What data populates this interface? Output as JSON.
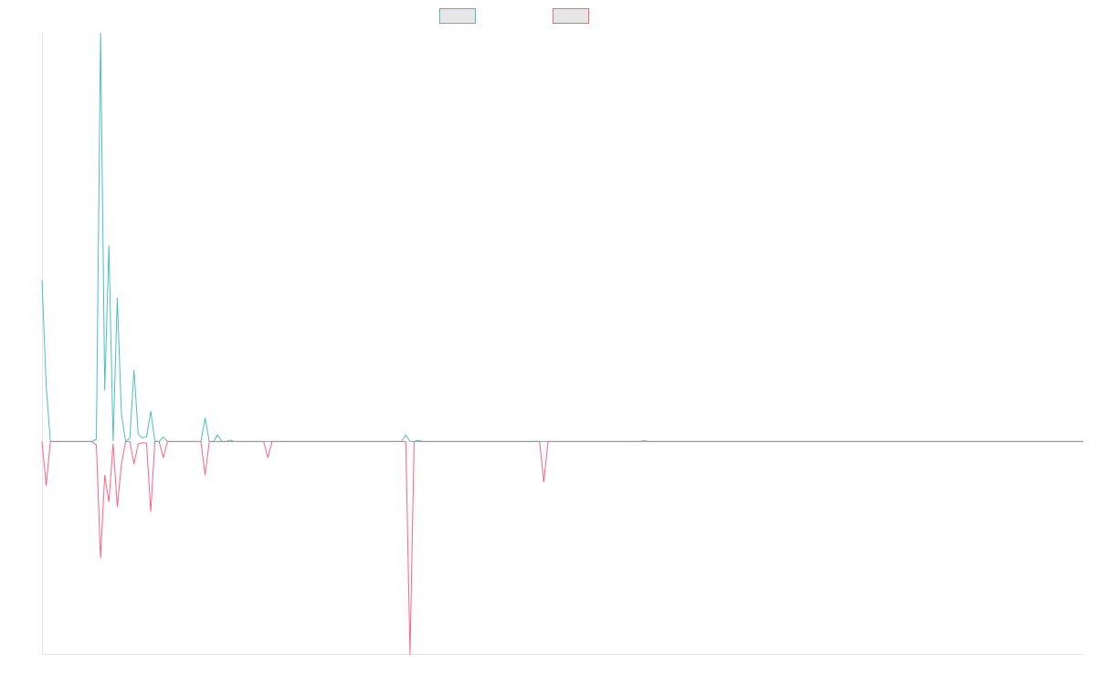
{
  "chart_data": {
    "type": "line",
    "title": "",
    "xlabel": "",
    "ylabel": "",
    "grid": false,
    "legend_position": "top-center",
    "y_range": [
      -0.52,
      1.0
    ],
    "series": [
      {
        "name": "",
        "color": "#4bc0c0",
        "fill_color": "#e6e6e6",
        "values": [
          0.395,
          0.135,
          0.0,
          0.0,
          0.0,
          0.0,
          0.0,
          0.0,
          0.0,
          0.0,
          0.0,
          0.0,
          0.0,
          0.006,
          1.0,
          0.125,
          0.48,
          0.0,
          0.352,
          0.065,
          0.0,
          0.008,
          0.175,
          0.018,
          0.009,
          0.011,
          0.074,
          0.0,
          0.0,
          0.011,
          0.0,
          0.0,
          0.0,
          0.0,
          0.0,
          0.0,
          0.0,
          0.0,
          0.0,
          0.058,
          0.0,
          0.0,
          0.0,
          0.0,
          0.0,
          0.0,
          0.0,
          0.0,
          0.0,
          0.0,
          0.0,
          0.0,
          0.0,
          0.0,
          0.0,
          0.0,
          0.0,
          0.0,
          0.0,
          0.0,
          0.0,
          0.0,
          0.0,
          0.0,
          0.0,
          0.0,
          0.0,
          0.0,
          0.0,
          0.0,
          0.0,
          0.0,
          0.0,
          0.0,
          0.0,
          0.0,
          0.0,
          0.0,
          0.0,
          0.0,
          0.0,
          0.0,
          0.0,
          0.0,
          0.0,
          0.0,
          0.0,
          0.0,
          0.0,
          0.0,
          0.0,
          0.0,
          0.0,
          0.0,
          0.0,
          0.0,
          0.0,
          0.0,
          0.0,
          0.0,
          0.0,
          0.0,
          0.0,
          0.0,
          0.0,
          0.0,
          0.0,
          0.0,
          0.0,
          0.0,
          0.0,
          0.0,
          0.0,
          0.0,
          0.0,
          0.0,
          0.0,
          0.0,
          0.0,
          0.0,
          0.0,
          0.0,
          0.0,
          0.0,
          0.0,
          0.0,
          0.0,
          0.0,
          0.0,
          0.0,
          0.0,
          0.0,
          0.0,
          0.0,
          0.0,
          0.0,
          0.0,
          0.0,
          0.0,
          0.0,
          0.0,
          0.0,
          0.0,
          0.0,
          0.0,
          0.0,
          0.0,
          0.0,
          0.0,
          0.0,
          0.0,
          0.0,
          0.0,
          0.0,
          0.0,
          0.0,
          0.0,
          0.0,
          0.0,
          0.0,
          0.0,
          0.0,
          0.0,
          0.0,
          0.0,
          0.0,
          0.0,
          0.0,
          0.0,
          0.0,
          0.0,
          0.0,
          0.0,
          0.0,
          0.0,
          0.0,
          0.0,
          0.0,
          0.0,
          0.0,
          0.0,
          0.0,
          0.0,
          0.0,
          0.0,
          0.0,
          0.0,
          0.0,
          0.0,
          0.0,
          0.0,
          0.0,
          0.0,
          0.0,
          0.0,
          0.0,
          0.0,
          0.0,
          0.0,
          0.0,
          0.0,
          0.0,
          0.0,
          0.0,
          0.0,
          0.0,
          0.0,
          0.0,
          0.0,
          0.0,
          0.0,
          0.0,
          0.0,
          0.0,
          0.0,
          0.0,
          0.0,
          0.0,
          0.0,
          0.0,
          0.0,
          0.0,
          0.0,
          0.0,
          0.0,
          0.0,
          0.0,
          0.0,
          0.0,
          0.0,
          0.0,
          0.0,
          0.0,
          0.0,
          0.0,
          0.0,
          0.0,
          0.0,
          0.0,
          0.0,
          0.0,
          0.0,
          0.0,
          0.0,
          0.0,
          0.0,
          0.0,
          0.0,
          0.0,
          0.0
        ],
        "spikes": [
          {
            "index": 42,
            "value": 0.016
          },
          {
            "index": 45,
            "value": 0.003
          },
          {
            "index": 87,
            "value": 0.016
          },
          {
            "index": 90,
            "value": 0.003
          },
          {
            "index": 144,
            "value": 0.002
          }
        ]
      },
      {
        "name": "",
        "color": "#ff6384",
        "fill_color": "#e6e6e6",
        "values": [
          0.0,
          -0.108,
          0.0,
          0.0,
          0.0,
          0.0,
          0.0,
          0.0,
          0.0,
          0.0,
          0.0,
          0.0,
          0.0,
          -0.009,
          -0.286,
          -0.082,
          -0.148,
          -0.005,
          -0.16,
          -0.055,
          0.0,
          0.0,
          -0.055,
          -0.006,
          -0.003,
          -0.004,
          -0.172,
          0.0,
          0.0,
          -0.04,
          0.0,
          0.0,
          0.0,
          0.0,
          0.0,
          0.0,
          0.0,
          0.0,
          0.0,
          -0.083,
          0.0,
          0.0,
          0.0,
          0.0,
          0.0,
          0.0,
          0.0,
          0.0,
          0.0,
          0.0,
          0.0,
          0.0,
          0.0,
          0.0,
          0.0,
          0.0,
          0.0,
          0.0,
          0.0,
          0.0,
          0.0,
          0.0,
          0.0,
          0.0,
          0.0,
          0.0,
          0.0,
          0.0,
          0.0,
          0.0,
          0.0,
          0.0,
          0.0,
          0.0,
          0.0,
          0.0,
          0.0,
          0.0,
          0.0,
          0.0,
          0.0,
          0.0,
          0.0,
          0.0,
          0.0,
          0.0,
          0.0,
          0.0,
          0.0,
          0.0,
          0.0,
          0.0,
          0.0,
          0.0,
          0.0,
          0.0,
          0.0,
          0.0,
          0.0,
          0.0,
          0.0,
          0.0,
          0.0,
          0.0,
          0.0,
          0.0,
          0.0,
          0.0,
          0.0,
          0.0,
          0.0,
          0.0,
          0.0,
          0.0,
          0.0,
          0.0,
          0.0,
          0.0,
          0.0,
          0.0,
          0.0,
          0.0,
          0.0,
          0.0,
          0.0,
          0.0,
          0.0,
          0.0,
          0.0,
          0.0,
          0.0,
          0.0,
          0.0,
          0.0,
          0.0,
          0.0,
          0.0,
          0.0,
          0.0,
          0.0,
          0.0,
          0.0,
          0.0,
          0.0,
          0.0,
          0.0,
          0.0,
          0.0,
          0.0,
          0.0,
          0.0,
          0.0,
          0.0,
          0.0,
          0.0,
          0.0,
          0.0,
          0.0,
          0.0,
          0.0,
          0.0,
          0.0,
          0.0,
          0.0,
          0.0,
          0.0,
          0.0,
          0.0,
          0.0,
          0.0,
          0.0,
          0.0,
          0.0,
          0.0,
          0.0,
          0.0,
          0.0,
          0.0,
          0.0,
          0.0,
          0.0,
          0.0,
          0.0,
          0.0,
          0.0,
          0.0,
          0.0,
          0.0,
          0.0,
          0.0,
          0.0,
          0.0,
          0.0,
          0.0,
          0.0,
          0.0,
          0.0,
          0.0,
          0.0,
          0.0,
          0.0,
          0.0,
          0.0,
          0.0,
          0.0,
          0.0,
          0.0,
          0.0,
          0.0,
          0.0,
          0.0,
          0.0,
          0.0,
          0.0,
          0.0,
          0.0,
          0.0,
          0.0,
          0.0,
          0.0,
          0.0,
          0.0,
          0.0,
          0.0,
          0.0,
          0.0,
          0.0,
          0.0,
          0.0,
          0.0,
          0.0,
          0.0,
          0.0,
          0.0,
          0.0,
          0.0,
          0.0,
          0.0,
          0.0,
          0.0,
          0.0,
          0.0,
          0.0,
          0.0,
          0.0,
          0.0,
          0.0,
          0.0,
          0.0,
          0.0
        ],
        "spikes": [
          {
            "index": 54,
            "value": -0.04
          },
          {
            "index": 88,
            "value": -0.522
          },
          {
            "index": 120,
            "value": -0.1
          }
        ]
      }
    ]
  }
}
